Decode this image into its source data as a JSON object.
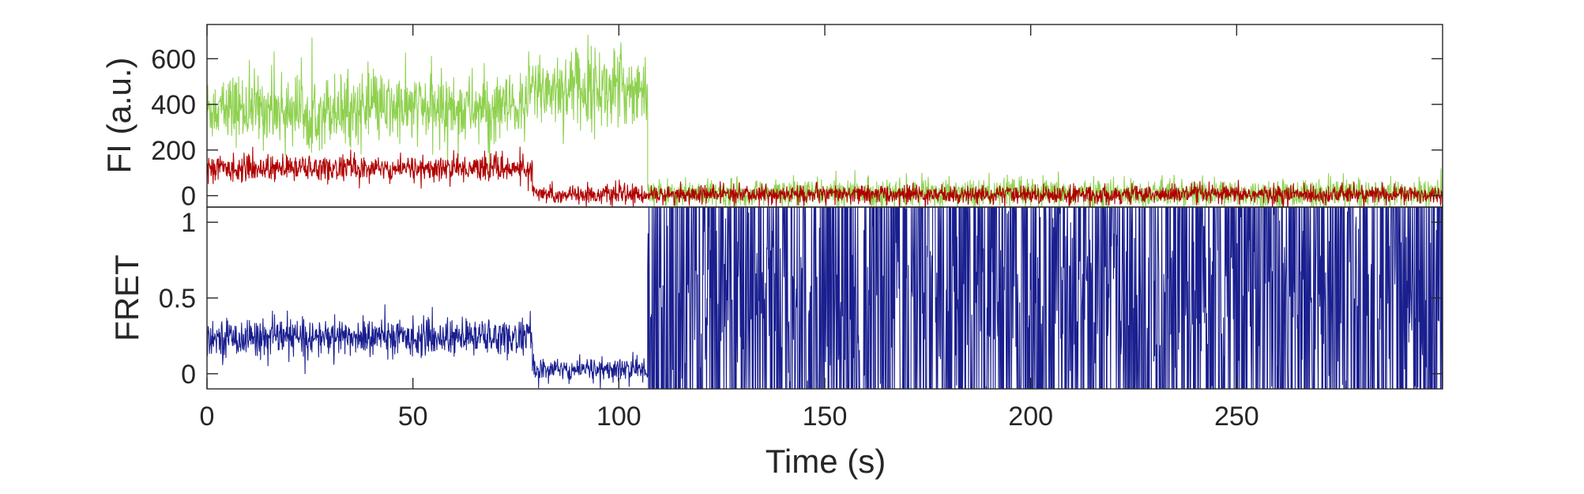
{
  "chart_data": [
    {
      "type": "line",
      "panel": "top",
      "ylabel": "FI (a.u.)",
      "xlabel": "",
      "xlim": [
        0,
        300
      ],
      "ylim": [
        -50,
        750
      ],
      "yticks": [
        0,
        200,
        400,
        600
      ],
      "ytick_labels": [
        "0",
        "200",
        "400",
        "600"
      ],
      "grid": false,
      "legend": "none",
      "series": [
        {
          "color": "#8fd14f",
          "segments": [
            {
              "x_start": 0,
              "x_end": 78,
              "mean": 380,
              "noise": 75
            },
            {
              "x_start": 78,
              "x_end": 107,
              "mean": 470,
              "noise": 85
            },
            {
              "x_start": 107,
              "x_end": 300,
              "mean": 10,
              "noise": 30
            }
          ]
        },
        {
          "color": "#b00000",
          "segments": [
            {
              "x_start": 0,
              "x_end": 79,
              "mean": 120,
              "noise": 28
            },
            {
              "x_start": 79,
              "x_end": 300,
              "mean": 5,
              "noise": 20
            }
          ]
        }
      ]
    },
    {
      "type": "line",
      "panel": "bottom",
      "ylabel": "FRET",
      "xlabel": "Time (s)",
      "xlim": [
        0,
        300
      ],
      "ylim": [
        -0.1,
        1.1
      ],
      "yticks": [
        0,
        0.5,
        1
      ],
      "ytick_labels": [
        "0",
        "0.5",
        "1"
      ],
      "xticks": [
        0,
        50,
        100,
        150,
        200,
        250
      ],
      "xtick_labels": [
        "0",
        "50",
        "100",
        "150",
        "200",
        "250"
      ],
      "grid": false,
      "legend": "none",
      "series": [
        {
          "color": "#1a1f8f",
          "segments": [
            {
              "x_start": 0,
              "x_end": 79,
              "mean": 0.24,
              "noise": 0.06
            },
            {
              "x_start": 79,
              "x_end": 107,
              "mean": 0.03,
              "noise": 0.04
            },
            {
              "x_start": 107,
              "x_end": 300,
              "mean": 0.5,
              "noise": 0.6
            }
          ]
        }
      ]
    }
  ]
}
